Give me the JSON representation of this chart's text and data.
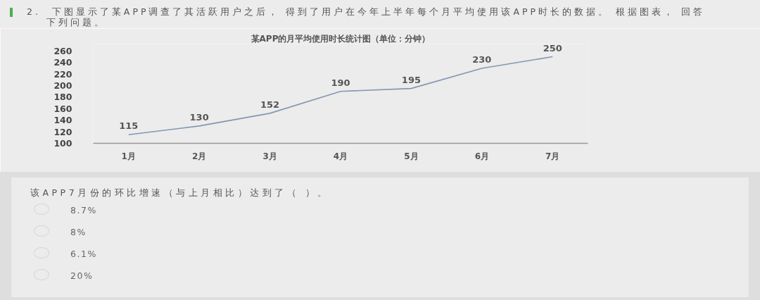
{
  "chart_data": {
    "type": "line",
    "title": "某APP的月平均使用时长统计图（单位：分钟）",
    "categories": [
      "1月",
      "2月",
      "3月",
      "4月",
      "5月",
      "6月",
      "7月"
    ],
    "series": [
      {
        "color": "#8497b0",
        "values": [
          115,
          130,
          152,
          190,
          195,
          230,
          250
        ]
      }
    ],
    "ylim": [
      100,
      272
    ],
    "yticks": [
      100,
      120,
      140,
      160,
      180,
      200,
      220,
      240,
      260
    ],
    "data_labels": true,
    "grid": false,
    "annotations": [
      "2.  下图显示了某APP调查了其活跃用户之后， 得到了用户在今年上半年每个月平均使用该APP时长的数据。 根据图表， 回答下列问题。",
      "该APP7月份的环比增速（与上月相比）达到了（ ）。",
      "8.7%",
      "8%",
      "6.1%",
      "20%"
    ]
  }
}
